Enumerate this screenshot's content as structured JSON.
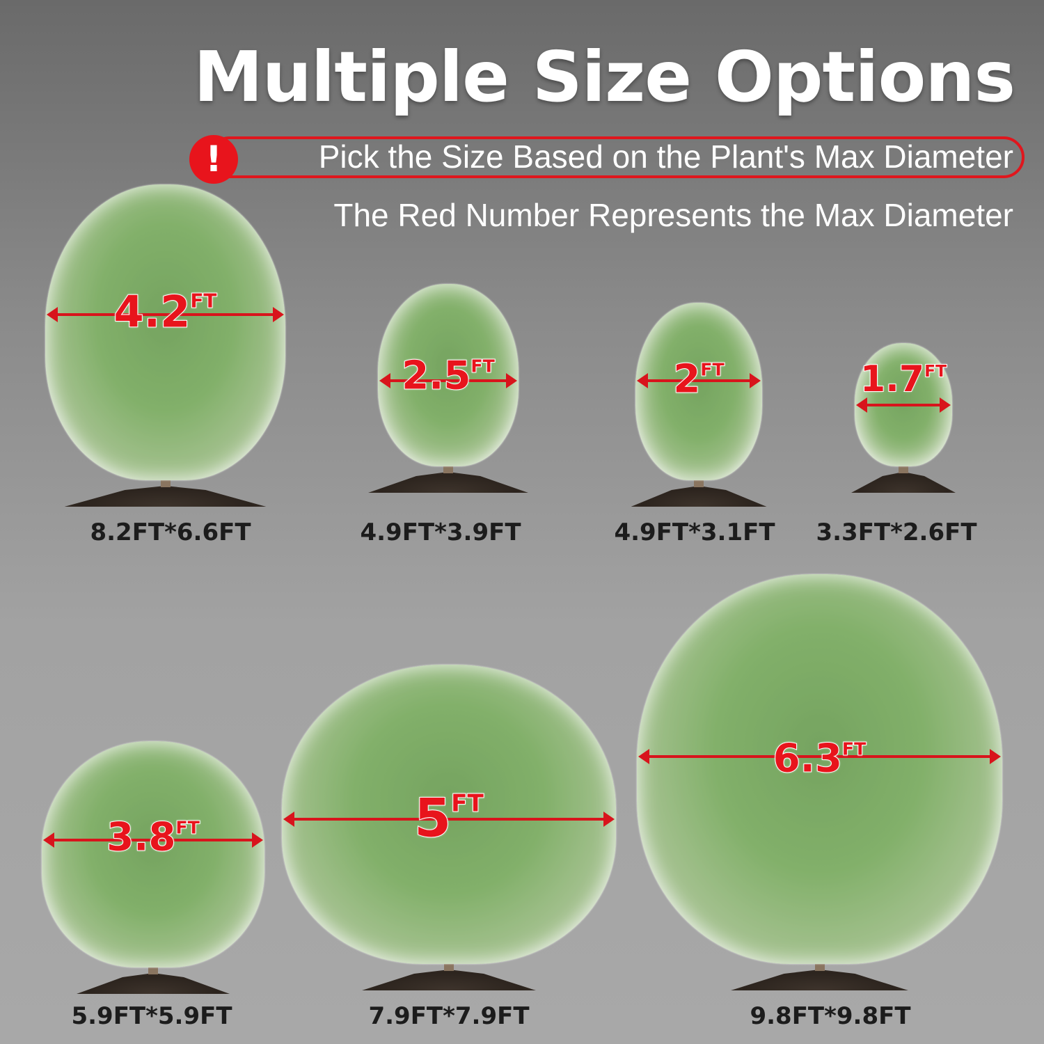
{
  "header": {
    "title": "Multiple Size Options",
    "warning_icon": "exclamation-circle-icon",
    "warning_symbol": "!",
    "subtitle": "Pick the Size Based on the Plant's Max Diameter",
    "note": "The Red Number Represents the Max Diameter"
  },
  "colors": {
    "accent": "#e8141c",
    "text": "#ffffff",
    "size_text": "#1c1c1c"
  },
  "unit": "FT",
  "items": [
    {
      "diameter": "4.2",
      "size": "8.2FT*6.6FT"
    },
    {
      "diameter": "2.5",
      "size": "4.9FT*3.9FT"
    },
    {
      "diameter": "2",
      "size": "4.9FT*3.1FT"
    },
    {
      "diameter": "1.7",
      "size": "3.3FT*2.6FT"
    },
    {
      "diameter": "3.8",
      "size": "5.9FT*5.9FT"
    },
    {
      "diameter": "5",
      "size": "7.9FT*7.9FT"
    },
    {
      "diameter": "6.3",
      "size": "9.8FT*9.8FT"
    }
  ]
}
